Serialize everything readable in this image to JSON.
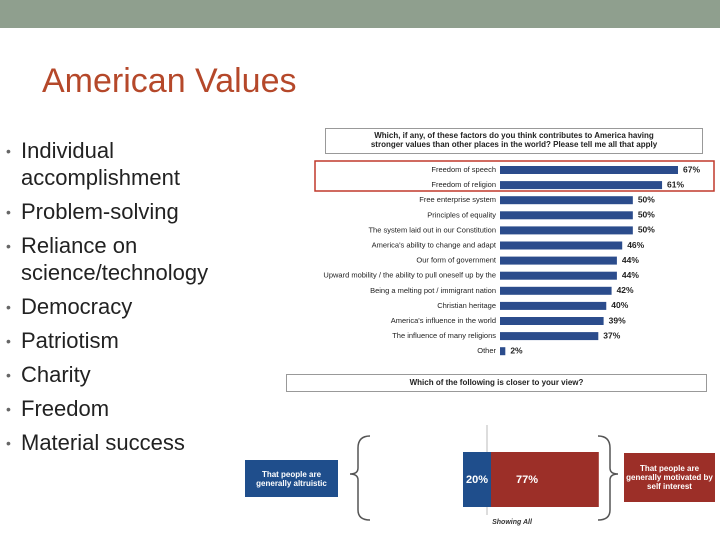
{
  "title": "American Values",
  "bullets": [
    "Individual accomplishment",
    "Problem-solving",
    "Reliance on science/technology",
    "Democracy",
    "Patriotism",
    "Charity",
    "Freedom",
    "Material success"
  ],
  "chart_data": [
    {
      "type": "hbar",
      "title": "Which, if any, of these factors do you think contributes to America having stronger values than other places in the world? Please tell me all that apply",
      "categories": [
        "Freedom of speech",
        "Freedom of religion",
        "Free enterprise system",
        "Principles of equality",
        "The system laid out in our Constitution",
        "America's ability to change and adapt",
        "Our form of government",
        "Upward mobility / the ability to pull oneself up by the",
        "Being a melting pot / immigrant nation",
        "Christian heritage",
        "America's influence in the world",
        "The influence of many religions",
        "Other"
      ],
      "values": [
        67,
        61,
        50,
        50,
        50,
        46,
        44,
        44,
        42,
        40,
        39,
        37,
        2
      ],
      "value_labels": [
        "67%",
        "61%",
        "50%",
        "50%",
        "50%",
        "46%",
        "44%",
        "44%",
        "42%",
        "40%",
        "39%",
        "37%",
        "2%"
      ],
      "color": "#2b4c8c"
    },
    {
      "type": "stacked",
      "title": "Which of the following is closer to your view?",
      "series": [
        {
          "name": "That people are generally altruistic",
          "color": "#1f4e8c",
          "values": [
            20
          ],
          "value_labels": [
            "20%"
          ]
        },
        {
          "name": "That people are generally motivated by self interest",
          "color": "#9c2f28",
          "values": [
            77
          ],
          "value_labels": [
            "77%"
          ]
        }
      ],
      "xlabel": "Showing All"
    }
  ]
}
